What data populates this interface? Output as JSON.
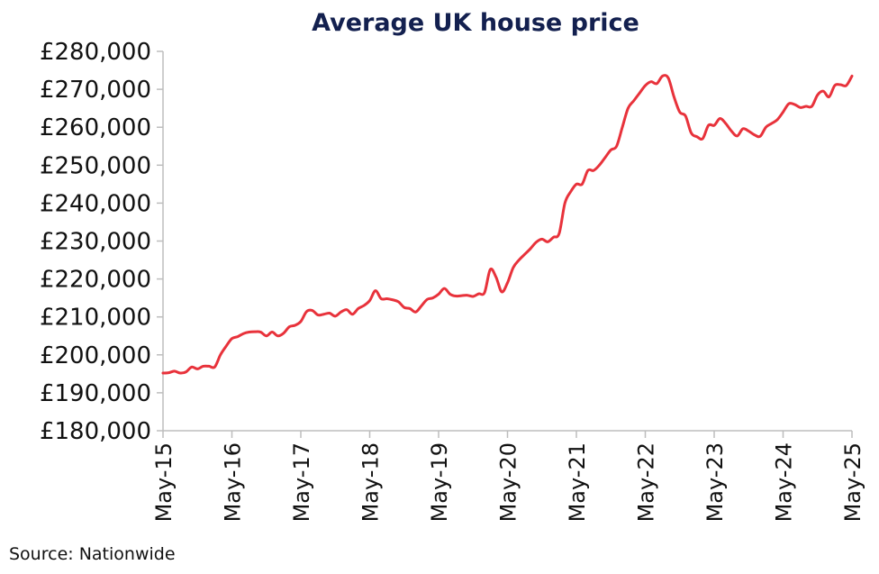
{
  "source": "Source: Nationwide",
  "chart_data": {
    "type": "line",
    "title": "Average UK house price",
    "xlabel": "",
    "ylabel": "",
    "ylim": [
      180000,
      280000
    ],
    "y_ticks": [
      "£180,000",
      "£190,000",
      "£200,000",
      "£210,000",
      "£220,000",
      "£230,000",
      "£240,000",
      "£250,000",
      "£260,000",
      "£270,000",
      "£280,000"
    ],
    "x_ticks": [
      "May-15",
      "May-16",
      "May-17",
      "May-18",
      "May-19",
      "May-20",
      "May-21",
      "May-22",
      "May-23",
      "May-24",
      "May-25"
    ],
    "grid": false,
    "legend": "none",
    "line_color": "#e8323b",
    "series": [
      {
        "x": [
          "May-15",
          "Jun-15",
          "Jul-15",
          "Aug-15",
          "Sep-15",
          "Oct-15",
          "Nov-15",
          "Dec-15",
          "Jan-16",
          "Feb-16",
          "Mar-16",
          "Apr-16",
          "May-16",
          "Jun-16",
          "Jul-16",
          "Aug-16",
          "Sep-16",
          "Oct-16",
          "Nov-16",
          "Dec-16",
          "Jan-17",
          "Feb-17",
          "Mar-17",
          "Apr-17",
          "May-17",
          "Jun-17",
          "Jul-17",
          "Aug-17",
          "Sep-17",
          "Oct-17",
          "Nov-17",
          "Dec-17",
          "Jan-18",
          "Feb-18",
          "Mar-18",
          "Apr-18",
          "May-18",
          "Jun-18",
          "Jul-18",
          "Aug-18",
          "Sep-18",
          "Oct-18",
          "Nov-18",
          "Dec-18",
          "Jan-19",
          "Feb-19",
          "Mar-19",
          "Apr-19",
          "May-19",
          "Jun-19",
          "Jul-19",
          "Aug-19",
          "Sep-19",
          "Oct-19",
          "Nov-19",
          "Dec-19",
          "Jan-20",
          "Feb-20",
          "Mar-20",
          "Apr-20",
          "May-20",
          "Jun-20",
          "Jul-20",
          "Aug-20",
          "Sep-20",
          "Oct-20",
          "Nov-20",
          "Dec-20",
          "Jan-21",
          "Feb-21",
          "Mar-21",
          "Apr-21",
          "May-21",
          "Jun-21",
          "Jul-21",
          "Aug-21",
          "Sep-21",
          "Oct-21",
          "Nov-21",
          "Dec-21",
          "Jan-22",
          "Feb-22",
          "Mar-22",
          "Apr-22",
          "May-22",
          "Jun-22",
          "Jul-22",
          "Aug-22",
          "Sep-22",
          "Oct-22",
          "Nov-22",
          "Dec-22",
          "Jan-23",
          "Feb-23",
          "Mar-23",
          "Apr-23",
          "May-23",
          "Jun-23",
          "Jul-23",
          "Aug-23",
          "Sep-23",
          "Oct-23",
          "Nov-23",
          "Dec-23",
          "Jan-24",
          "Feb-24",
          "Mar-24",
          "Apr-24",
          "May-24",
          "Jun-24",
          "Jul-24",
          "Aug-24",
          "Sep-24",
          "Oct-24",
          "Nov-24",
          "Dec-24",
          "Jan-25",
          "Feb-25",
          "Mar-25",
          "Apr-25",
          "May-25"
        ],
        "values": [
          195200,
          195300,
          195700,
          195200,
          195500,
          196800,
          196300,
          197000,
          197000,
          196800,
          200000,
          202300,
          204300,
          204800,
          205600,
          206000,
          206100,
          206000,
          205000,
          206000,
          205000,
          205700,
          207400,
          207800,
          208800,
          211400,
          211700,
          210500,
          210700,
          211000,
          210200,
          211300,
          211900,
          210700,
          212200,
          213000,
          214300,
          216900,
          214800,
          214800,
          214500,
          214000,
          212500,
          212200,
          211300,
          212900,
          214600,
          215000,
          216000,
          217500,
          216000,
          215500,
          215600,
          215700,
          215400,
          216100,
          216400,
          222500,
          220500,
          216600,
          219000,
          223000,
          225000,
          226500,
          228000,
          229700,
          230500,
          229800,
          231000,
          232000,
          240000,
          243000,
          245000,
          245000,
          248600,
          248600,
          250000,
          252000,
          254000,
          255000,
          260000,
          265000,
          267000,
          269000,
          271000,
          272000,
          271500,
          273500,
          273000,
          268000,
          264000,
          263000,
          258500,
          257500,
          257000,
          260500,
          260500,
          262300,
          261000,
          259000,
          257700,
          259600,
          259000,
          258000,
          257600,
          260000,
          261000,
          262000,
          264000,
          266200,
          266000,
          265200,
          265500,
          265500,
          268500,
          269500,
          268000,
          271000,
          271200,
          271000,
          273500
        ]
      }
    ]
  }
}
